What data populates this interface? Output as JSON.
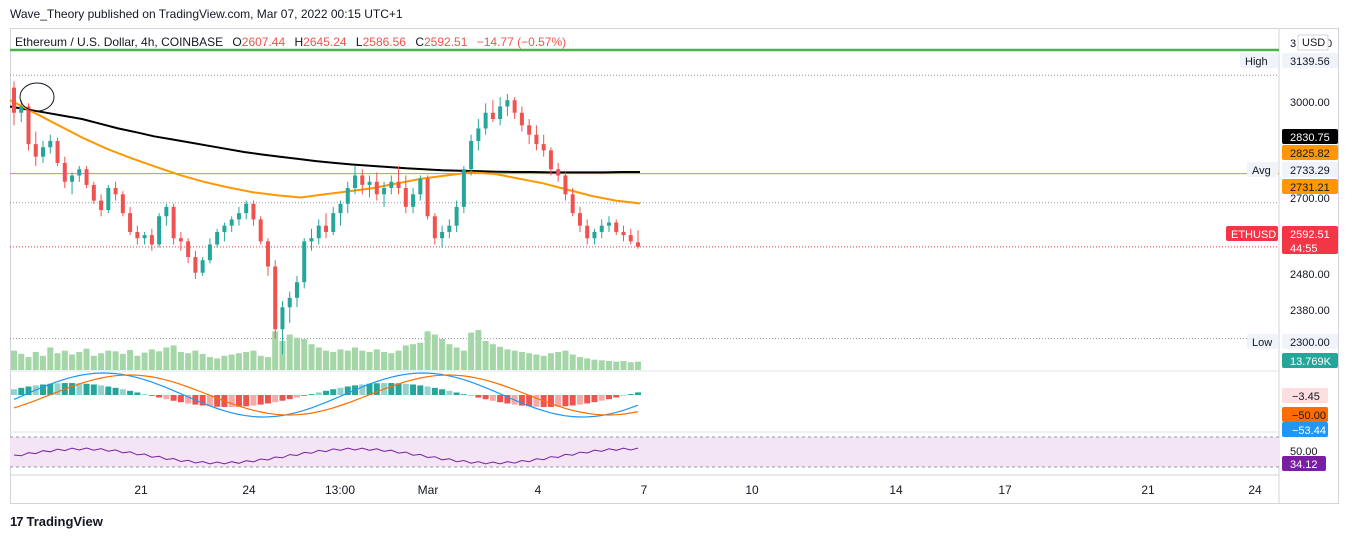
{
  "header": {
    "published_by": "Wave_Theory published on TradingView.com, Mar 07, 2022 00:15 UTC+1"
  },
  "legend": {
    "symbol": "Ethereum / U.S. Dollar, 4h, COINBASE",
    "o_label": "O",
    "o_value": "2607.44",
    "h_label": "H",
    "h_value": "2645.24",
    "l_label": "L",
    "l_value": "2586.56",
    "c_label": "C",
    "c_value": "2592.51",
    "change": "−14.77 (−0.57%)"
  },
  "footer": {
    "logo_text": "TradingView"
  },
  "chart_data": {
    "type": "candlestick",
    "symbol": "ETHUSD",
    "currency": "USD",
    "timeframe": "4h",
    "exchange": "COINBASE",
    "x_ticks": [
      "21",
      "24",
      "13:00",
      "Mar",
      "4",
      "7",
      "10",
      "14",
      "17",
      "21",
      "24"
    ],
    "y_ticks": [
      "3000.00",
      "2700.00",
      "2480.00",
      "2380.00",
      "2300.00"
    ],
    "y_top_label": "3",
    "y_top_label_suffix": "0",
    "ylim": [
      2200,
      3220
    ],
    "price_labels": [
      {
        "name": "High",
        "value": "3139.56",
        "color": "#f0f3fa",
        "text_color": "#131722"
      },
      {
        "name": "",
        "value": "2830.75",
        "color": "#000000",
        "text_color": "#ffffff"
      },
      {
        "name": "",
        "value": "2825.82",
        "color": "#ff9800",
        "text_color": "#131722"
      },
      {
        "name": "Avg",
        "value": "2733.29",
        "color": "#f0f3fa",
        "text_color": "#131722"
      },
      {
        "name": "",
        "value": "2731.21",
        "color": "#ff9800",
        "text_color": "#131722"
      },
      {
        "name": "ETHUSD",
        "value": "2592.51",
        "countdown": "44:55",
        "color": "#f23645",
        "text_color": "#ffffff"
      },
      {
        "name": "Low",
        "value": "2300.00",
        "color": "#f0f3fa",
        "text_color": "#131722"
      },
      {
        "name": "",
        "value": "13.769K",
        "color": "#26a69a",
        "text_color": "#ffffff"
      }
    ],
    "horizontal_lines": [
      {
        "value": 3220,
        "color": "#4caf50"
      },
      {
        "value": 2826,
        "color": "#d6a000"
      }
    ],
    "candles": [
      [
        3100,
        3120,
        2980,
        3020
      ],
      [
        3020,
        3060,
        2990,
        3040
      ],
      [
        3040,
        3050,
        2900,
        2920
      ],
      [
        2920,
        2960,
        2850,
        2880
      ],
      [
        2880,
        2930,
        2860,
        2910
      ],
      [
        2910,
        2950,
        2890,
        2930
      ],
      [
        2930,
        2940,
        2850,
        2860
      ],
      [
        2860,
        2880,
        2780,
        2800
      ],
      [
        2800,
        2830,
        2760,
        2820
      ],
      [
        2820,
        2850,
        2800,
        2840
      ],
      [
        2840,
        2850,
        2780,
        2790
      ],
      [
        2790,
        2800,
        2730,
        2740
      ],
      [
        2740,
        2760,
        2690,
        2710
      ],
      [
        2710,
        2790,
        2700,
        2780
      ],
      [
        2780,
        2800,
        2740,
        2760
      ],
      [
        2760,
        2770,
        2690,
        2700
      ],
      [
        2700,
        2720,
        2630,
        2640
      ],
      [
        2640,
        2660,
        2600,
        2620
      ],
      [
        2620,
        2640,
        2600,
        2630
      ],
      [
        2630,
        2650,
        2580,
        2600
      ],
      [
        2600,
        2700,
        2590,
        2690
      ],
      [
        2690,
        2730,
        2660,
        2720
      ],
      [
        2720,
        2730,
        2600,
        2620
      ],
      [
        2620,
        2640,
        2580,
        2610
      ],
      [
        2610,
        2620,
        2540,
        2560
      ],
      [
        2560,
        2580,
        2490,
        2510
      ],
      [
        2510,
        2560,
        2500,
        2550
      ],
      [
        2550,
        2620,
        2540,
        2600
      ],
      [
        2600,
        2650,
        2590,
        2640
      ],
      [
        2640,
        2670,
        2610,
        2660
      ],
      [
        2660,
        2690,
        2640,
        2680
      ],
      [
        2680,
        2720,
        2660,
        2700
      ],
      [
        2700,
        2740,
        2680,
        2730
      ],
      [
        2730,
        2740,
        2660,
        2680
      ],
      [
        2680,
        2690,
        2600,
        2610
      ],
      [
        2610,
        2620,
        2500,
        2530
      ],
      [
        2530,
        2550,
        2300,
        2330
      ],
      [
        2330,
        2420,
        2250,
        2400
      ],
      [
        2400,
        2450,
        2350,
        2430
      ],
      [
        2430,
        2500,
        2400,
        2480
      ],
      [
        2480,
        2620,
        2460,
        2610
      ],
      [
        2610,
        2650,
        2580,
        2620
      ],
      [
        2620,
        2680,
        2600,
        2660
      ],
      [
        2660,
        2700,
        2620,
        2640
      ],
      [
        2640,
        2720,
        2630,
        2700
      ],
      [
        2700,
        2740,
        2660,
        2730
      ],
      [
        2730,
        2800,
        2700,
        2780
      ],
      [
        2780,
        2850,
        2760,
        2820
      ],
      [
        2820,
        2840,
        2760,
        2790
      ],
      [
        2790,
        2820,
        2750,
        2800
      ],
      [
        2800,
        2830,
        2740,
        2760
      ],
      [
        2760,
        2800,
        2720,
        2780
      ],
      [
        2780,
        2820,
        2760,
        2800
      ],
      [
        2800,
        2850,
        2760,
        2780
      ],
      [
        2780,
        2820,
        2700,
        2720
      ],
      [
        2720,
        2780,
        2700,
        2760
      ],
      [
        2760,
        2820,
        2740,
        2810
      ],
      [
        2810,
        2820,
        2680,
        2690
      ],
      [
        2690,
        2700,
        2600,
        2620
      ],
      [
        2620,
        2660,
        2590,
        2640
      ],
      [
        2640,
        2680,
        2620,
        2660
      ],
      [
        2660,
        2740,
        2640,
        2720
      ],
      [
        2720,
        2850,
        2700,
        2840
      ],
      [
        2840,
        2950,
        2820,
        2930
      ],
      [
        2930,
        3000,
        2900,
        2970
      ],
      [
        2970,
        3050,
        2950,
        3020
      ],
      [
        3020,
        3060,
        2990,
        3000
      ],
      [
        3000,
        3070,
        2980,
        3040
      ],
      [
        3040,
        3080,
        3010,
        3060
      ],
      [
        3060,
        3070,
        3000,
        3020
      ],
      [
        3020,
        3040,
        2960,
        2980
      ],
      [
        2980,
        3000,
        2920,
        2950
      ],
      [
        2950,
        2980,
        2900,
        2920
      ],
      [
        2920,
        2950,
        2880,
        2900
      ],
      [
        2900,
        2910,
        2820,
        2840
      ],
      [
        2840,
        2860,
        2800,
        2820
      ],
      [
        2820,
        2830,
        2740,
        2760
      ],
      [
        2760,
        2780,
        2690,
        2700
      ],
      [
        2700,
        2720,
        2640,
        2660
      ],
      [
        2660,
        2680,
        2600,
        2620
      ],
      [
        2620,
        2650,
        2600,
        2640
      ],
      [
        2640,
        2680,
        2620,
        2660
      ],
      [
        2660,
        2690,
        2640,
        2670
      ],
      [
        2670,
        2680,
        2630,
        2640
      ],
      [
        2640,
        2660,
        2610,
        2630
      ],
      [
        2630,
        2650,
        2600,
        2610
      ],
      [
        2607,
        2645,
        2587,
        2593
      ]
    ],
    "volume": [
      30,
      25,
      20,
      28,
      22,
      35,
      26,
      30,
      24,
      28,
      33,
      22,
      26,
      30,
      29,
      25,
      31,
      22,
      27,
      32,
      29,
      35,
      38,
      28,
      26,
      30,
      25,
      20,
      18,
      22,
      24,
      26,
      28,
      30,
      22,
      20,
      60,
      45,
      55,
      50,
      48,
      40,
      35,
      30,
      28,
      32,
      30,
      35,
      30,
      28,
      32,
      28,
      26,
      30,
      38,
      40,
      42,
      60,
      55,
      48,
      40,
      35,
      30,
      58,
      62,
      45,
      40,
      36,
      32,
      30,
      28,
      26,
      24,
      22,
      26,
      28,
      30,
      24,
      20,
      18,
      16,
      15,
      14,
      13,
      14,
      12,
      13
    ],
    "ma_long": {
      "color": "#000000",
      "values": [
        3040,
        3030,
        3020,
        3010,
        3000,
        2985,
        2970,
        2958,
        2945,
        2935,
        2925,
        2915,
        2905,
        2895,
        2887,
        2880,
        2873,
        2866,
        2860,
        2855,
        2851,
        2847,
        2843,
        2840,
        2837,
        2835,
        2834,
        2832,
        2831,
        2831,
        2830,
        2830,
        2830,
        2830,
        2831,
        2831
      ]
    },
    "ma_short": {
      "color": "#ff9800",
      "values": [
        3060,
        3020,
        2980,
        2940,
        2905,
        2875,
        2848,
        2822,
        2800,
        2782,
        2767,
        2757,
        2750,
        2760,
        2770,
        2780,
        2795,
        2810,
        2820,
        2830,
        2825,
        2810,
        2795,
        2775,
        2755,
        2740,
        2731
      ]
    },
    "macd": {
      "histogram_last": "−3.45",
      "signal_last": "−50.00",
      "macd_last": "−53.44"
    },
    "rsi": {
      "last": "34.12",
      "level_label": "50.00"
    }
  }
}
